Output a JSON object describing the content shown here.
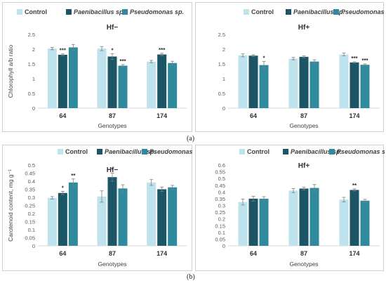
{
  "figure": {
    "label_a": "(a)",
    "label_b": "(b)"
  },
  "colors": {
    "Control": "#bee3ec",
    "Paenibacillus sp.": "#1b5566",
    "Pseudomonas sp.": "#2e8a9c"
  },
  "chart_data": [
    {
      "type": "bar",
      "title": "Hf−",
      "xlabel": "Genotypes",
      "ylabel": "Chlorophyll a/b ratio",
      "categories": [
        "64",
        "87",
        "174"
      ],
      "ylim": [
        0,
        2.5
      ],
      "yticks": [
        "0",
        "0.5",
        "1",
        "1.5",
        "2",
        "2.5"
      ],
      "legend": "top",
      "series": [
        {
          "name": "Control",
          "values": [
            2.02,
            2.02,
            1.58
          ],
          "errors": [
            0.04,
            0.07,
            0.04
          ],
          "sig": [
            "",
            "",
            ""
          ]
        },
        {
          "name": "Paenibacillus sp.",
          "values": [
            1.81,
            1.75,
            1.82
          ],
          "errors": [
            0.03,
            0.1,
            0.04
          ],
          "sig": [
            "***",
            "*",
            "***"
          ]
        },
        {
          "name": "Pseudomonas sp.",
          "values": [
            2.06,
            1.44,
            1.53
          ],
          "errors": [
            0.1,
            0.04,
            0.06
          ],
          "sig": [
            "",
            "***",
            ""
          ]
        }
      ]
    },
    {
      "type": "bar",
      "title": "Hf+",
      "xlabel": "Genotypes",
      "ylabel": "",
      "categories": [
        "64",
        "87",
        "174"
      ],
      "ylim": [
        0,
        2.5
      ],
      "yticks": [
        "0",
        "0.5",
        "1",
        "1.5",
        "2",
        "2.5"
      ],
      "legend": "top",
      "series": [
        {
          "name": "Control",
          "values": [
            1.79,
            1.68,
            1.82
          ],
          "errors": [
            0.05,
            0.04,
            0.05
          ],
          "sig": [
            "",
            "",
            ""
          ]
        },
        {
          "name": "Paenibacillus sp.",
          "values": [
            1.78,
            1.74,
            1.55
          ],
          "errors": [
            0.03,
            0.03,
            0.02
          ],
          "sig": [
            "",
            "",
            "***"
          ]
        },
        {
          "name": "Pseudomonas sp.",
          "values": [
            1.46,
            1.58,
            1.47
          ],
          "errors": [
            0.12,
            0.06,
            0.03
          ],
          "sig": [
            "*",
            "",
            "***"
          ]
        }
      ]
    },
    {
      "type": "bar",
      "title": "Hf−",
      "xlabel": "Genotypes",
      "ylabel": "Carotenoid content, mg g⁻¹",
      "categories": [
        "64",
        "87",
        "174"
      ],
      "ylim": [
        0,
        0.5
      ],
      "yticks": [
        "0",
        "0.05",
        "0.1",
        "0.15",
        "0.2",
        "0.25",
        "0.3",
        "0.35",
        "0.4",
        "0.45",
        "0.5"
      ],
      "legend": "top",
      "series": [
        {
          "name": "Control",
          "values": [
            0.297,
            0.305,
            0.392
          ],
          "errors": [
            0.008,
            0.035,
            0.018
          ],
          "sig": [
            "",
            "",
            ""
          ]
        },
        {
          "name": "Paenibacillus sp.",
          "values": [
            0.327,
            0.425,
            0.35
          ],
          "errors": [
            0.01,
            0.025,
            0.013
          ],
          "sig": [
            "*",
            "*",
            ""
          ]
        },
        {
          "name": "Pseudomonas sp.",
          "values": [
            0.392,
            0.355,
            0.362
          ],
          "errors": [
            0.022,
            0.023,
            0.012
          ],
          "sig": [
            "**",
            "",
            ""
          ]
        }
      ]
    },
    {
      "type": "bar",
      "title": "Hf+",
      "xlabel": "Genotypes",
      "ylabel": "",
      "categories": [
        "64",
        "87",
        "174"
      ],
      "ylim": [
        0,
        0.6
      ],
      "yticks": [
        "0",
        "0.05",
        "0.1",
        "0.15",
        "0.2",
        "0.25",
        "0.3",
        "0.35",
        "0.4",
        "0.45",
        "0.5",
        "0.55",
        "0.6"
      ],
      "legend": "top",
      "series": [
        {
          "name": "Control",
          "values": [
            0.325,
            0.41,
            0.343
          ],
          "errors": [
            0.022,
            0.015,
            0.017
          ],
          "sig": [
            "",
            "",
            ""
          ]
        },
        {
          "name": "Paenibacillus sp.",
          "values": [
            0.35,
            0.425,
            0.415
          ],
          "errors": [
            0.018,
            0.01,
            0.008
          ],
          "sig": [
            "",
            "",
            "**"
          ]
        },
        {
          "name": "Pseudomonas sp.",
          "values": [
            0.35,
            0.43,
            0.335
          ],
          "errors": [
            0.015,
            0.025,
            0.01
          ],
          "sig": [
            "",
            "",
            ""
          ]
        }
      ]
    }
  ]
}
